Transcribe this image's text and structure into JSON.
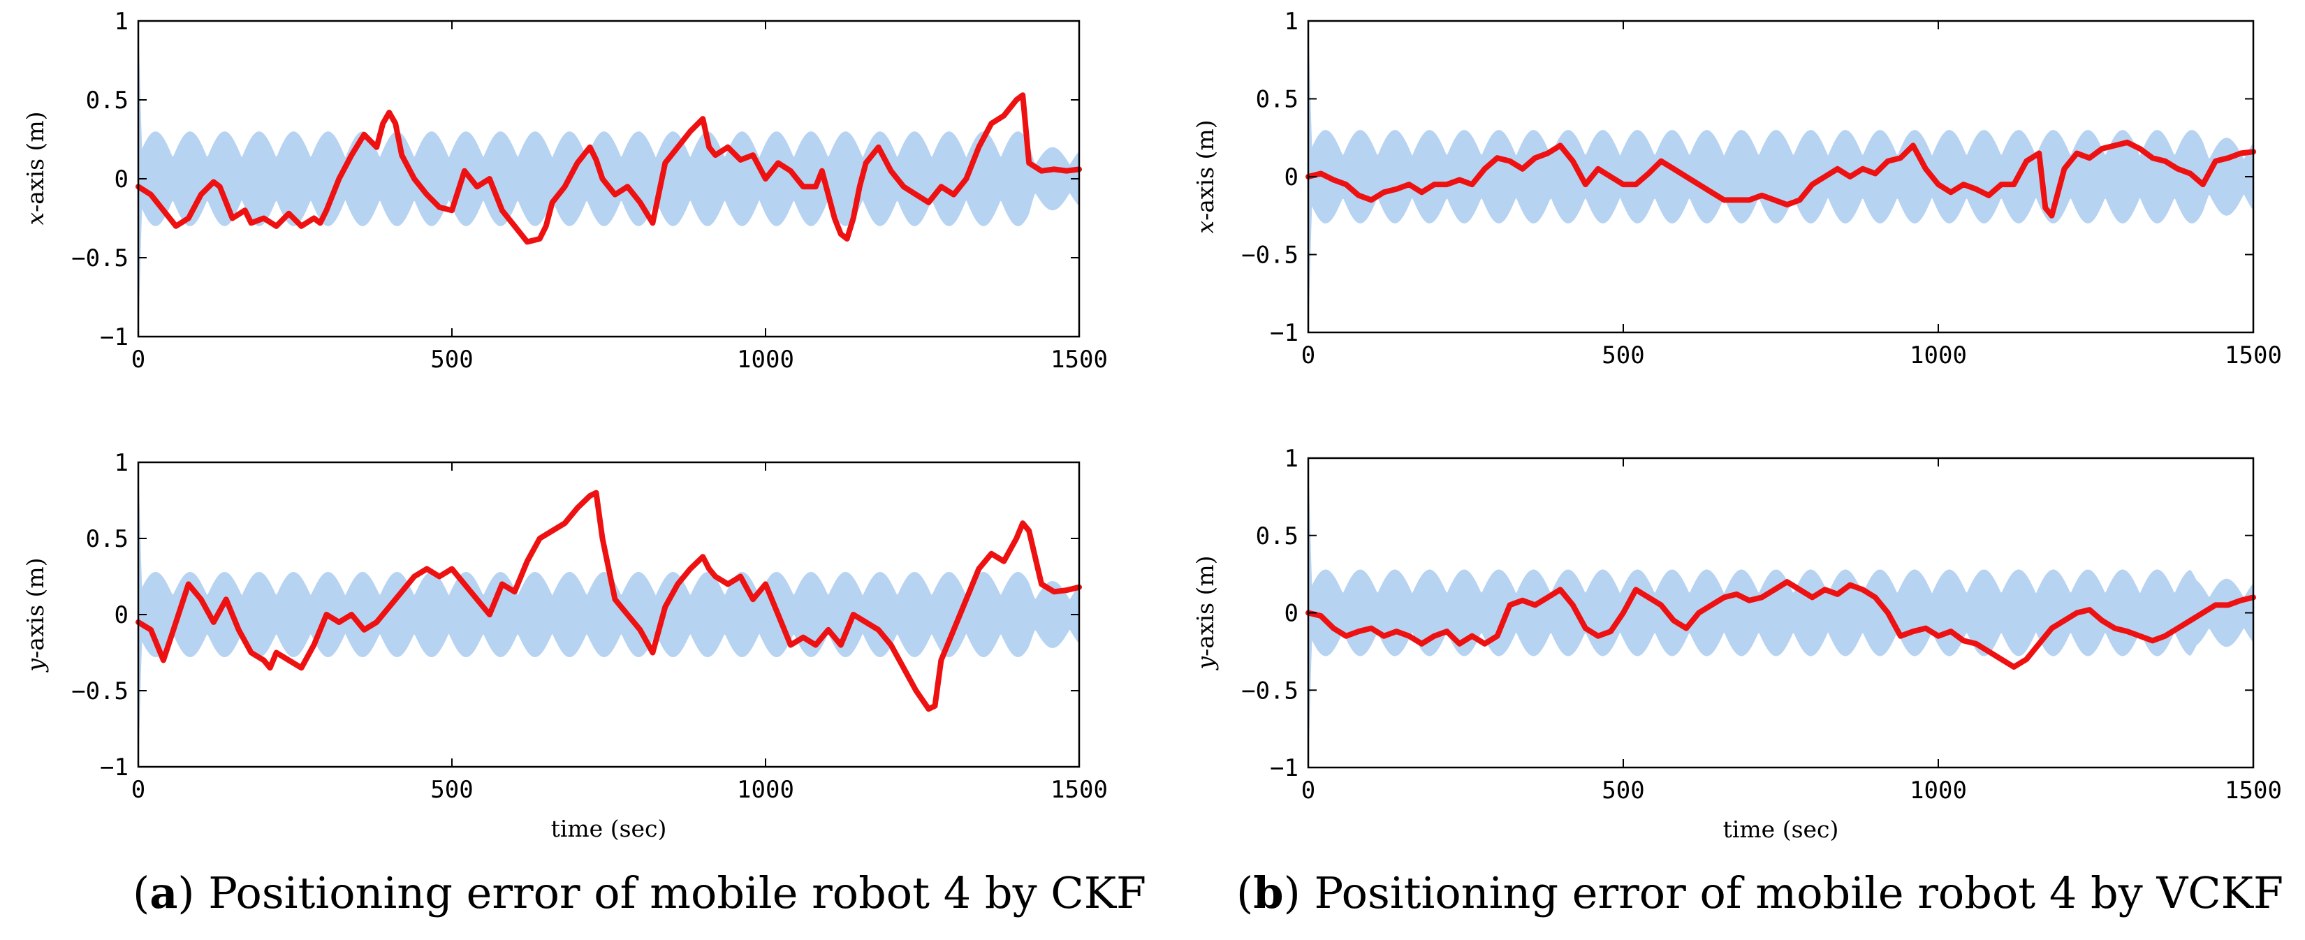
{
  "figure": {
    "caption_a_letter": "a",
    "caption_a_text": "Positioning error of mobile robot 4 by CKF",
    "caption_b_letter": "b",
    "caption_b_text": "Positioning error of mobile robot 4 by VCKF"
  },
  "colors": {
    "band": "#b7d3f2",
    "error_line": "#ee1111",
    "axes": "#000000"
  },
  "chart_data": [
    {
      "id": "a-x",
      "type": "line",
      "panel": "a",
      "ylabel_var": "x",
      "ylabel_rest": "-axis (m)",
      "xlabel": "",
      "xlim": [
        0,
        1500
      ],
      "ylim": [
        -1,
        1
      ],
      "xticks": [
        0,
        500,
        1000,
        1500
      ],
      "xtick_labels": [
        "0",
        "500",
        "1000",
        "1500"
      ],
      "yticks": [
        -1,
        -0.5,
        0,
        0.5,
        1
      ],
      "ytick_labels": [
        "−1",
        "−0.5",
        "0",
        "0.5",
        "1"
      ],
      "band": {
        "name": "error bound",
        "bound_points": [
          [
            0,
            1
          ],
          [
            5,
            0.3
          ],
          [
            300,
            0.3
          ],
          [
            1420,
            0.3
          ],
          [
            1430,
            0.2
          ],
          [
            1500,
            0.2
          ]
        ],
        "amplitude": 0.3,
        "period": 55
      },
      "series": [
        {
          "name": "positioning error",
          "x": [
            0,
            20,
            40,
            60,
            80,
            100,
            120,
            130,
            150,
            170,
            180,
            200,
            220,
            240,
            260,
            280,
            290,
            300,
            320,
            340,
            360,
            380,
            390,
            400,
            410,
            420,
            440,
            460,
            480,
            500,
            520,
            540,
            560,
            580,
            600,
            620,
            640,
            650,
            660,
            680,
            700,
            720,
            730,
            740,
            760,
            780,
            800,
            820,
            840,
            860,
            880,
            900,
            910,
            920,
            940,
            960,
            980,
            1000,
            1020,
            1040,
            1060,
            1080,
            1090,
            1100,
            1110,
            1120,
            1130,
            1140,
            1150,
            1160,
            1180,
            1200,
            1220,
            1240,
            1260,
            1280,
            1300,
            1320,
            1340,
            1360,
            1380,
            1400,
            1410,
            1420,
            1440,
            1460,
            1480,
            1500
          ],
          "y": [
            -0.05,
            -0.1,
            -0.2,
            -0.3,
            -0.25,
            -0.1,
            -0.02,
            -0.05,
            -0.25,
            -0.2,
            -0.28,
            -0.25,
            -0.3,
            -0.22,
            -0.3,
            -0.25,
            -0.28,
            -0.2,
            0.0,
            0.15,
            0.28,
            0.2,
            0.35,
            0.42,
            0.35,
            0.15,
            0.0,
            -0.1,
            -0.18,
            -0.2,
            0.05,
            -0.05,
            0.0,
            -0.2,
            -0.3,
            -0.4,
            -0.38,
            -0.3,
            -0.15,
            -0.05,
            0.1,
            0.2,
            0.12,
            0.0,
            -0.1,
            -0.05,
            -0.15,
            -0.28,
            0.1,
            0.2,
            0.3,
            0.38,
            0.2,
            0.15,
            0.2,
            0.12,
            0.15,
            0.0,
            0.1,
            0.05,
            -0.05,
            -0.05,
            0.05,
            -0.1,
            -0.25,
            -0.35,
            -0.38,
            -0.25,
            -0.05,
            0.1,
            0.2,
            0.05,
            -0.05,
            -0.1,
            -0.15,
            -0.05,
            -0.1,
            0.0,
            0.2,
            0.35,
            0.4,
            0.5,
            0.53,
            0.1,
            0.05,
            0.06,
            0.05,
            0.06
          ]
        }
      ]
    },
    {
      "id": "a-y",
      "type": "line",
      "panel": "a",
      "ylabel_var": "y",
      "ylabel_rest": "-axis (m)",
      "xlabel": "time (sec)",
      "xlim": [
        0,
        1500
      ],
      "ylim": [
        -1,
        1
      ],
      "xticks": [
        0,
        500,
        1000,
        1500
      ],
      "xtick_labels": [
        "0",
        "500",
        "1000",
        "1500"
      ],
      "yticks": [
        -1,
        -0.5,
        0,
        0.5,
        1
      ],
      "ytick_labels": [
        "−1",
        "−0.5",
        "0",
        "0.5",
        "1"
      ],
      "band": {
        "name": "error bound",
        "bound_points": [
          [
            0,
            1
          ],
          [
            5,
            0.28
          ],
          [
            1420,
            0.28
          ],
          [
            1430,
            0.22
          ],
          [
            1500,
            0.22
          ]
        ],
        "amplitude": 0.28,
        "period": 55
      },
      "series": [
        {
          "name": "positioning error",
          "x": [
            0,
            20,
            40,
            60,
            80,
            100,
            120,
            140,
            160,
            180,
            200,
            210,
            220,
            240,
            260,
            280,
            300,
            320,
            340,
            360,
            380,
            400,
            420,
            440,
            460,
            480,
            500,
            520,
            540,
            560,
            580,
            600,
            620,
            640,
            660,
            680,
            700,
            720,
            730,
            740,
            760,
            780,
            800,
            820,
            840,
            860,
            880,
            900,
            910,
            920,
            940,
            960,
            980,
            1000,
            1020,
            1040,
            1060,
            1080,
            1100,
            1120,
            1140,
            1160,
            1180,
            1200,
            1220,
            1240,
            1260,
            1270,
            1280,
            1300,
            1320,
            1340,
            1360,
            1380,
            1400,
            1410,
            1420,
            1440,
            1460,
            1480,
            1500
          ],
          "y": [
            -0.05,
            -0.1,
            -0.3,
            -0.05,
            0.2,
            0.1,
            -0.05,
            0.1,
            -0.1,
            -0.25,
            -0.3,
            -0.35,
            -0.25,
            -0.3,
            -0.35,
            -0.2,
            0.0,
            -0.05,
            0.0,
            -0.1,
            -0.05,
            0.05,
            0.15,
            0.25,
            0.3,
            0.25,
            0.3,
            0.2,
            0.1,
            0.0,
            0.2,
            0.15,
            0.35,
            0.5,
            0.55,
            0.6,
            0.7,
            0.78,
            0.8,
            0.5,
            0.1,
            0.0,
            -0.1,
            -0.25,
            0.05,
            0.2,
            0.3,
            0.38,
            0.3,
            0.25,
            0.2,
            0.25,
            0.1,
            0.2,
            0.0,
            -0.2,
            -0.15,
            -0.2,
            -0.1,
            -0.2,
            0.0,
            -0.05,
            -0.1,
            -0.2,
            -0.35,
            -0.5,
            -0.62,
            -0.6,
            -0.3,
            -0.1,
            0.1,
            0.3,
            0.4,
            0.35,
            0.5,
            0.6,
            0.55,
            0.2,
            0.15,
            0.16,
            0.18
          ]
        }
      ]
    },
    {
      "id": "b-x",
      "type": "line",
      "panel": "b",
      "ylabel_var": "x",
      "ylabel_rest": "-axis (m)",
      "xlabel": "",
      "xlim": [
        0,
        1500
      ],
      "ylim": [
        -1,
        1
      ],
      "xticks": [
        0,
        500,
        1000,
        1500
      ],
      "xtick_labels": [
        "0",
        "500",
        "1000",
        "1500"
      ],
      "yticks": [
        -1,
        -0.5,
        0,
        0.5,
        1
      ],
      "ytick_labels": [
        "−1",
        "−0.5",
        "0",
        "0.5",
        "1"
      ],
      "band": {
        "name": "error bound",
        "bound_points": [
          [
            0,
            1
          ],
          [
            5,
            0.3
          ],
          [
            1420,
            0.3
          ],
          [
            1430,
            0.25
          ],
          [
            1500,
            0.25
          ]
        ],
        "amplitude": 0.3,
        "period": 55
      },
      "series": [
        {
          "name": "positioning error",
          "x": [
            0,
            20,
            40,
            60,
            80,
            100,
            120,
            140,
            160,
            180,
            200,
            220,
            240,
            260,
            280,
            300,
            320,
            340,
            360,
            380,
            400,
            420,
            440,
            460,
            480,
            500,
            520,
            540,
            560,
            580,
            600,
            620,
            640,
            660,
            680,
            700,
            720,
            740,
            760,
            780,
            800,
            820,
            840,
            860,
            880,
            900,
            920,
            940,
            960,
            980,
            1000,
            1020,
            1040,
            1060,
            1080,
            1100,
            1120,
            1140,
            1160,
            1170,
            1180,
            1200,
            1220,
            1240,
            1260,
            1280,
            1300,
            1320,
            1340,
            1360,
            1380,
            1400,
            1420,
            1440,
            1460,
            1480,
            1500
          ],
          "y": [
            0.0,
            0.02,
            -0.02,
            -0.05,
            -0.12,
            -0.15,
            -0.1,
            -0.08,
            -0.05,
            -0.1,
            -0.05,
            -0.05,
            -0.02,
            -0.05,
            0.05,
            0.12,
            0.1,
            0.05,
            0.12,
            0.15,
            0.2,
            0.1,
            -0.05,
            0.05,
            0.0,
            -0.05,
            -0.05,
            0.02,
            0.1,
            0.05,
            0.0,
            -0.05,
            -0.1,
            -0.15,
            -0.15,
            -0.15,
            -0.12,
            -0.15,
            -0.18,
            -0.15,
            -0.05,
            0.0,
            0.05,
            0.0,
            0.05,
            0.02,
            0.1,
            0.12,
            0.2,
            0.05,
            -0.05,
            -0.1,
            -0.05,
            -0.08,
            -0.12,
            -0.05,
            -0.05,
            0.1,
            0.15,
            -0.2,
            -0.25,
            0.05,
            0.15,
            0.12,
            0.18,
            0.2,
            0.22,
            0.18,
            0.12,
            0.1,
            0.05,
            0.02,
            -0.05,
            0.1,
            0.12,
            0.15,
            0.16
          ]
        }
      ]
    },
    {
      "id": "b-y",
      "type": "line",
      "panel": "b",
      "ylabel_var": "y",
      "ylabel_rest": "-axis (m)",
      "xlabel": "time (sec)",
      "xlim": [
        0,
        1500
      ],
      "ylim": [
        -1,
        1
      ],
      "xticks": [
        0,
        500,
        1000,
        1500
      ],
      "xtick_labels": [
        "0",
        "500",
        "1000",
        "1500"
      ],
      "yticks": [
        -1,
        -0.5,
        0,
        0.5,
        1
      ],
      "ytick_labels": [
        "−1",
        "−0.5",
        "0",
        "0.5",
        "1"
      ],
      "band": {
        "name": "error bound",
        "bound_points": [
          [
            0,
            1
          ],
          [
            5,
            0.28
          ],
          [
            1400,
            0.28
          ],
          [
            1410,
            0.22
          ],
          [
            1500,
            0.22
          ]
        ],
        "amplitude": 0.28,
        "period": 55
      },
      "series": [
        {
          "name": "positioning error",
          "x": [
            0,
            20,
            40,
            60,
            80,
            100,
            120,
            140,
            160,
            180,
            200,
            220,
            240,
            260,
            280,
            300,
            320,
            340,
            360,
            380,
            400,
            420,
            440,
            460,
            480,
            500,
            520,
            540,
            560,
            580,
            600,
            620,
            640,
            660,
            680,
            700,
            720,
            740,
            760,
            780,
            800,
            820,
            840,
            860,
            880,
            900,
            920,
            940,
            960,
            980,
            1000,
            1020,
            1040,
            1060,
            1080,
            1100,
            1120,
            1140,
            1160,
            1180,
            1200,
            1220,
            1240,
            1260,
            1280,
            1300,
            1320,
            1340,
            1360,
            1380,
            1400,
            1420,
            1440,
            1460,
            1480,
            1500
          ],
          "y": [
            0.0,
            -0.02,
            -0.1,
            -0.15,
            -0.12,
            -0.1,
            -0.15,
            -0.12,
            -0.15,
            -0.2,
            -0.15,
            -0.12,
            -0.2,
            -0.15,
            -0.2,
            -0.15,
            0.05,
            0.08,
            0.05,
            0.1,
            0.15,
            0.05,
            -0.1,
            -0.15,
            -0.12,
            0.0,
            0.15,
            0.1,
            0.05,
            -0.05,
            -0.1,
            0.0,
            0.05,
            0.1,
            0.12,
            0.08,
            0.1,
            0.15,
            0.2,
            0.15,
            0.1,
            0.15,
            0.12,
            0.18,
            0.15,
            0.1,
            0.0,
            -0.15,
            -0.12,
            -0.1,
            -0.15,
            -0.12,
            -0.18,
            -0.2,
            -0.25,
            -0.3,
            -0.35,
            -0.3,
            -0.2,
            -0.1,
            -0.05,
            0.0,
            0.02,
            -0.05,
            -0.1,
            -0.12,
            -0.15,
            -0.18,
            -0.15,
            -0.1,
            -0.05,
            0.0,
            0.05,
            0.05,
            0.08,
            0.1
          ]
        }
      ]
    }
  ]
}
